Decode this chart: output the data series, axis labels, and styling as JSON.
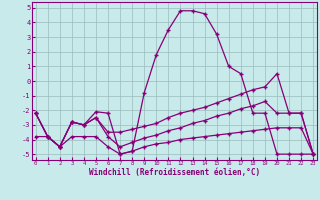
{
  "xlabel": "Windchill (Refroidissement éolien,°C)",
  "background_color": "#c8eaea",
  "grid_color": "#99bbbb",
  "line_color": "#880077",
  "xlim": [
    0,
    23
  ],
  "ylim": [
    -5.4,
    5.4
  ],
  "xticks": [
    0,
    1,
    2,
    3,
    4,
    5,
    6,
    7,
    8,
    9,
    10,
    11,
    12,
    13,
    14,
    15,
    16,
    17,
    18,
    19,
    20,
    21,
    22,
    23
  ],
  "yticks": [
    -5,
    -4,
    -3,
    -2,
    -1,
    0,
    1,
    2,
    3,
    4,
    5
  ],
  "curves": [
    {
      "x": [
        0,
        1,
        2,
        3,
        4,
        5,
        6,
        7,
        8,
        9,
        10,
        11,
        12,
        13,
        14,
        15,
        16,
        17,
        18,
        19,
        20,
        21,
        22,
        23
      ],
      "y": [
        -2.2,
        -3.8,
        -4.5,
        -2.8,
        -3.0,
        -2.1,
        -2.2,
        -5.0,
        -4.8,
        -0.8,
        1.8,
        3.5,
        4.8,
        4.8,
        4.6,
        3.2,
        1.0,
        0.5,
        -2.2,
        -2.2,
        -5.0,
        -5.0,
        -5.0,
        -5.0
      ]
    },
    {
      "x": [
        0,
        1,
        2,
        3,
        4,
        5,
        6,
        7,
        8,
        9,
        10,
        11,
        12,
        13,
        14,
        15,
        16,
        17,
        18,
        19,
        20,
        21,
        22,
        23
      ],
      "y": [
        -2.2,
        -3.8,
        -4.5,
        -2.8,
        -3.0,
        -2.5,
        -3.5,
        -3.5,
        -3.3,
        -3.1,
        -2.9,
        -2.5,
        -2.2,
        -2.0,
        -1.8,
        -1.5,
        -1.2,
        -0.9,
        -0.6,
        -0.4,
        0.5,
        -2.2,
        -2.2,
        -5.0
      ]
    },
    {
      "x": [
        0,
        1,
        2,
        3,
        4,
        5,
        6,
        7,
        8,
        9,
        10,
        11,
        12,
        13,
        14,
        15,
        16,
        17,
        18,
        19,
        20,
        21,
        22,
        23
      ],
      "y": [
        -2.2,
        -3.8,
        -4.5,
        -2.8,
        -3.0,
        -2.5,
        -3.8,
        -4.5,
        -4.2,
        -3.9,
        -3.7,
        -3.4,
        -3.2,
        -2.9,
        -2.7,
        -2.4,
        -2.2,
        -1.9,
        -1.7,
        -1.4,
        -2.2,
        -2.2,
        -2.2,
        -5.0
      ]
    },
    {
      "x": [
        0,
        1,
        2,
        3,
        4,
        5,
        6,
        7,
        8,
        9,
        10,
        11,
        12,
        13,
        14,
        15,
        16,
        17,
        18,
        19,
        20,
        21,
        22,
        23
      ],
      "y": [
        -3.8,
        -3.8,
        -4.5,
        -3.8,
        -3.8,
        -3.8,
        -4.5,
        -5.0,
        -4.8,
        -4.5,
        -4.3,
        -4.2,
        -4.0,
        -3.9,
        -3.8,
        -3.7,
        -3.6,
        -3.5,
        -3.4,
        -3.3,
        -3.2,
        -3.2,
        -3.2,
        -5.0
      ]
    }
  ]
}
